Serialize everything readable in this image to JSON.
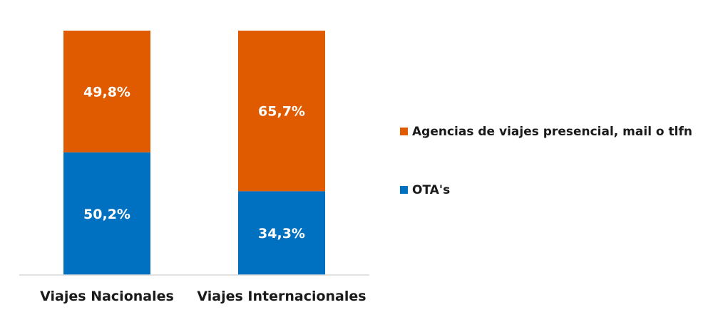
{
  "chart_data": {
    "type": "bar",
    "stacked": true,
    "percent_stacked": true,
    "categories": [
      "Viajes Nacionales",
      "Viajes Internacionales"
    ],
    "series": [
      {
        "name": "OTA's",
        "values": [
          50.2,
          34.3
        ],
        "labels": [
          "50,2%",
          "34,3%"
        ],
        "color": "#0070C0"
      },
      {
        "name": "Agencias de viajes presencial, mail o tlfn",
        "values": [
          49.8,
          65.7
        ],
        "labels": [
          "49,8%",
          "65,7%"
        ],
        "color": "#E05A00"
      }
    ],
    "ylim": [
      0,
      100
    ],
    "grid": false,
    "legend_position": "right",
    "legend_order": [
      "Agencias de viajes presencial, mail o tlfn",
      "OTA's"
    ]
  }
}
